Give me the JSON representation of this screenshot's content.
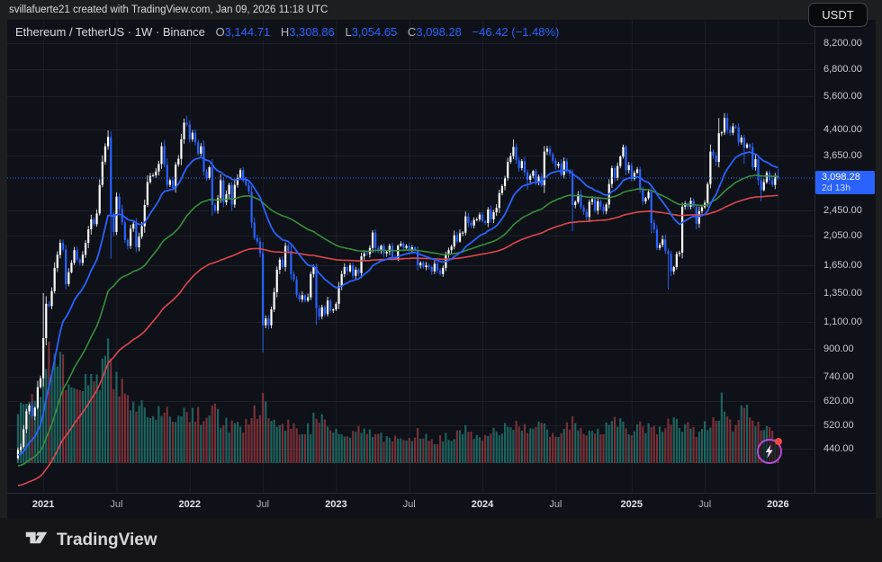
{
  "attribution": {
    "text": "svillafuerte21 created with TradingView.com, Jan 09, 2026 11:18 UTC"
  },
  "header": {
    "symbol": "Ethereum / TetherUS",
    "separator": "·",
    "interval": "1W",
    "exchange": "Binance",
    "ohlc": [
      {
        "label": "O",
        "value": "3,144.71"
      },
      {
        "label": "H",
        "value": "3,308.86"
      },
      {
        "label": "L",
        "value": "3,054.65"
      },
      {
        "label": "C",
        "value": "3,098.28"
      }
    ],
    "change": "−46.42 (−1.48%)"
  },
  "currency_button": {
    "label": "USDT"
  },
  "price_label": {
    "price": "3,098.28",
    "countdown": "2d 13h"
  },
  "footer": {
    "brand": "TradingView"
  },
  "colors": {
    "accent_blue": "#2962ff",
    "candle_up": "#ffffff",
    "candle_up_wick": "#e3e5e8",
    "candle_down": "#2962ff",
    "ma_fast": "#2962ff",
    "ma_mid": "#388e3c",
    "ma_slow": "#e0454e",
    "vol_up": "rgba(42,166,152,0.55)",
    "vol_down": "rgba(226,77,87,0.50)",
    "grid": "rgba(255,255,255,0.055)"
  },
  "chart_data": {
    "type": "candlestick-with-volume",
    "title": "Ethereum / TetherUS · 1W · Binance",
    "scale": "logarithmic",
    "start_week": "2020-11-02",
    "weeks": 271,
    "current_price": 3098.28,
    "last_candle": {
      "open": 3144.71,
      "high": 3308.86,
      "low": 3054.65,
      "close": 3098.28
    },
    "y_axis": {
      "ticks": [
        {
          "value": 8200,
          "label": "8,200.00"
        },
        {
          "value": 6800,
          "label": "6,800.00"
        },
        {
          "value": 5600,
          "label": "5,600.00"
        },
        {
          "value": 4400,
          "label": "4,400.00"
        },
        {
          "value": 3650,
          "label": "3,650.00"
        },
        {
          "value": 2450,
          "label": "2,450.00"
        },
        {
          "value": 2050,
          "label": "2,050.00"
        },
        {
          "value": 1650,
          "label": "1,650.00"
        },
        {
          "value": 1350,
          "label": "1,350.00"
        },
        {
          "value": 1100,
          "label": "1,100.00"
        },
        {
          "value": 900,
          "label": "900.00"
        },
        {
          "value": 740,
          "label": "740.00"
        },
        {
          "value": 620,
          "label": "620.00"
        },
        {
          "value": 520,
          "label": "520.00"
        },
        {
          "value": 440,
          "label": "440.00"
        }
      ]
    },
    "x_axis": {
      "ticks": [
        {
          "week": 9,
          "label": "2021",
          "major": true
        },
        {
          "week": 35,
          "label": "Jul",
          "major": false
        },
        {
          "week": 61,
          "label": "2022",
          "major": true
        },
        {
          "week": 87,
          "label": "Jul",
          "major": false
        },
        {
          "week": 113,
          "label": "2023",
          "major": true
        },
        {
          "week": 139,
          "label": "Jul",
          "major": false
        },
        {
          "week": 165,
          "label": "2024",
          "major": true
        },
        {
          "week": 191,
          "label": "Jul",
          "major": false
        },
        {
          "week": 218,
          "label": "2025",
          "major": true
        },
        {
          "week": 244,
          "label": "Jul",
          "major": false
        },
        {
          "week": 270,
          "label": "2026",
          "major": true
        }
      ]
    },
    "moving_averages": [
      {
        "name": "fast-blue",
        "span": 20,
        "color_key": "ma_fast"
      },
      {
        "name": "mid-green",
        "span": 64,
        "color_key": "ma_mid"
      },
      {
        "name": "slow-red",
        "span": 160,
        "color_key": "ma_slow"
      }
    ],
    "weekly_closes": [
      [
        0,
        435
      ],
      [
        1,
        445
      ],
      [
        2,
        505
      ],
      [
        3,
        575
      ],
      [
        4,
        600
      ],
      [
        5,
        555
      ],
      [
        6,
        590
      ],
      [
        7,
        685
      ],
      [
        8,
        730
      ],
      [
        9,
        975
      ],
      [
        10,
        1250
      ],
      [
        11,
        1230
      ],
      [
        12,
        1370
      ],
      [
        13,
        1620
      ],
      [
        14,
        1780
      ],
      [
        15,
        1940
      ],
      [
        16,
        1850
      ],
      [
        17,
        1440
      ],
      [
        18,
        1570
      ],
      [
        19,
        1680
      ],
      [
        20,
        1840
      ],
      [
        21,
        1720
      ],
      [
        22,
        1680
      ],
      [
        23,
        1780
      ],
      [
        24,
        1940
      ],
      [
        25,
        2140
      ],
      [
        26,
        2300
      ],
      [
        27,
        2220
      ],
      [
        28,
        2400
      ],
      [
        29,
        2950
      ],
      [
        30,
        3490
      ],
      [
        31,
        3900
      ],
      [
        32,
        4170
      ],
      [
        33,
        2390
      ],
      [
        34,
        2100
      ],
      [
        35,
        2710
      ],
      [
        36,
        2480
      ],
      [
        37,
        2250
      ],
      [
        38,
        1980
      ],
      [
        39,
        1900
      ],
      [
        40,
        2150
      ],
      [
        41,
        2230
      ],
      [
        42,
        1880
      ],
      [
        43,
        2030
      ],
      [
        44,
        2190
      ],
      [
        45,
        2550
      ],
      [
        46,
        3010
      ],
      [
        47,
        3150
      ],
      [
        48,
        3160
      ],
      [
        49,
        3250
      ],
      [
        50,
        3430
      ],
      [
        51,
        3900
      ],
      [
        52,
        3420
      ],
      [
        53,
        2950
      ],
      [
        54,
        3050
      ],
      [
        55,
        2890
      ],
      [
        56,
        3420
      ],
      [
        57,
        3560
      ],
      [
        58,
        4100
      ],
      [
        59,
        4620
      ],
      [
        60,
        4560
      ],
      [
        61,
        4100
      ],
      [
        62,
        4300
      ],
      [
        63,
        4010
      ],
      [
        64,
        3700
      ],
      [
        65,
        3900
      ],
      [
        66,
        3250
      ],
      [
        67,
        3100
      ],
      [
        68,
        3350
      ],
      [
        69,
        2550
      ],
      [
        70,
        2450
      ],
      [
        71,
        2680
      ],
      [
        72,
        3050
      ],
      [
        73,
        2600
      ],
      [
        74,
        2760
      ],
      [
        75,
        2950
      ],
      [
        76,
        2560
      ],
      [
        77,
        2950
      ],
      [
        78,
        3110
      ],
      [
        79,
        3280
      ],
      [
        80,
        3050
      ],
      [
        81,
        2950
      ],
      [
        82,
        2810
      ],
      [
        83,
        2250
      ],
      [
        84,
        2010
      ],
      [
        85,
        1960
      ],
      [
        86,
        1800
      ],
      [
        87,
        1070
      ],
      [
        88,
        1125
      ],
      [
        89,
        1070
      ],
      [
        90,
        1200
      ],
      [
        91,
        1360
      ],
      [
        92,
        1600
      ],
      [
        93,
        1720
      ],
      [
        94,
        1630
      ],
      [
        95,
        1900
      ],
      [
        96,
        1830
      ],
      [
        97,
        1550
      ],
      [
        98,
        1490
      ],
      [
        99,
        1330
      ],
      [
        100,
        1290
      ],
      [
        101,
        1330
      ],
      [
        102,
        1280
      ],
      [
        103,
        1310
      ],
      [
        104,
        1550
      ],
      [
        105,
        1630
      ],
      [
        106,
        1210
      ],
      [
        107,
        1140
      ],
      [
        108,
        1220
      ],
      [
        109,
        1160
      ],
      [
        110,
        1280
      ],
      [
        111,
        1190
      ],
      [
        112,
        1200
      ],
      [
        113,
        1250
      ],
      [
        114,
        1420
      ],
      [
        115,
        1550
      ],
      [
        116,
        1630
      ],
      [
        117,
        1580
      ],
      [
        118,
        1650
      ],
      [
        119,
        1530
      ],
      [
        120,
        1600
      ],
      [
        121,
        1560
      ],
      [
        122,
        1760
      ],
      [
        123,
        1800
      ],
      [
        124,
        1790
      ],
      [
        125,
        1870
      ],
      [
        126,
        2090
      ],
      [
        127,
        1870
      ],
      [
        128,
        1840
      ],
      [
        129,
        1900
      ],
      [
        130,
        1800
      ],
      [
        131,
        1820
      ],
      [
        132,
        1900
      ],
      [
        133,
        1750
      ],
      [
        134,
        1730
      ],
      [
        135,
        1900
      ],
      [
        136,
        1930
      ],
      [
        137,
        1870
      ],
      [
        138,
        1900
      ],
      [
        139,
        1850
      ],
      [
        140,
        1880
      ],
      [
        141,
        1840
      ],
      [
        142,
        1650
      ],
      [
        143,
        1680
      ],
      [
        144,
        1630
      ],
      [
        145,
        1650
      ],
      [
        146,
        1630
      ],
      [
        147,
        1580
      ],
      [
        148,
        1670
      ],
      [
        149,
        1590
      ],
      [
        150,
        1550
      ],
      [
        151,
        1620
      ],
      [
        152,
        1790
      ],
      [
        153,
        1840
      ],
      [
        154,
        1890
      ],
      [
        155,
        2050
      ],
      [
        156,
        1960
      ],
      [
        157,
        2080
      ],
      [
        158,
        2090
      ],
      [
        159,
        2350
      ],
      [
        160,
        2240
      ],
      [
        161,
        2200
      ],
      [
        162,
        2290
      ],
      [
        163,
        2300
      ],
      [
        164,
        2380
      ],
      [
        165,
        2270
      ],
      [
        166,
        2240
      ],
      [
        167,
        2470
      ],
      [
        168,
        2300
      ],
      [
        169,
        2420
      ],
      [
        170,
        2500
      ],
      [
        171,
        2780
      ],
      [
        172,
        2920
      ],
      [
        173,
        3100
      ],
      [
        174,
        3480
      ],
      [
        175,
        3630
      ],
      [
        176,
        3880
      ],
      [
        177,
        3520
      ],
      [
        178,
        3330
      ],
      [
        179,
        3500
      ],
      [
        180,
        3230
      ],
      [
        181,
        3060
      ],
      [
        182,
        3150
      ],
      [
        183,
        3260
      ],
      [
        184,
        3020
      ],
      [
        185,
        3130
      ],
      [
        186,
        2940
      ],
      [
        187,
        3750
      ],
      [
        188,
        3830
      ],
      [
        189,
        3680
      ],
      [
        190,
        3510
      ],
      [
        191,
        3380
      ],
      [
        192,
        3440
      ],
      [
        193,
        3170
      ],
      [
        194,
        3500
      ],
      [
        195,
        3270
      ],
      [
        196,
        3210
      ],
      [
        197,
        2550
      ],
      [
        198,
        2610
      ],
      [
        199,
        2750
      ],
      [
        200,
        2510
      ],
      [
        201,
        2430
      ],
      [
        202,
        2340
      ],
      [
        203,
        2610
      ],
      [
        204,
        2660
      ],
      [
        205,
        2450
      ],
      [
        206,
        2620
      ],
      [
        207,
        2520
      ],
      [
        208,
        2440
      ],
      [
        209,
        2560
      ],
      [
        210,
        2970
      ],
      [
        211,
        3330
      ],
      [
        212,
        3100
      ],
      [
        213,
        3380
      ],
      [
        214,
        3620
      ],
      [
        215,
        3880
      ],
      [
        216,
        3280
      ],
      [
        217,
        3400
      ],
      [
        218,
        3080
      ],
      [
        219,
        3220
      ],
      [
        220,
        3300
      ],
      [
        221,
        2870
      ],
      [
        222,
        2620
      ],
      [
        223,
        2680
      ],
      [
        224,
        2800
      ],
      [
        225,
        2240
      ],
      [
        226,
        2140
      ],
      [
        227,
        1870
      ],
      [
        228,
        1910
      ],
      [
        229,
        1990
      ],
      [
        230,
        1830
      ],
      [
        231,
        1790
      ],
      [
        232,
        1580
      ],
      [
        233,
        1630
      ],
      [
        234,
        1790
      ],
      [
        235,
        1810
      ],
      [
        236,
        2520
      ],
      [
        237,
        2580
      ],
      [
        238,
        2520
      ],
      [
        239,
        2630
      ],
      [
        240,
        2520
      ],
      [
        241,
        2230
      ],
      [
        242,
        2440
      ],
      [
        243,
        2510
      ],
      [
        244,
        2590
      ],
      [
        245,
        2970
      ],
      [
        246,
        3750
      ],
      [
        247,
        3650
      ],
      [
        248,
        3480
      ],
      [
        249,
        4280
      ],
      [
        250,
        4310
      ],
      [
        251,
        4780
      ],
      [
        252,
        4390
      ],
      [
        253,
        4300
      ],
      [
        254,
        4500
      ],
      [
        255,
        4470
      ],
      [
        256,
        4010
      ],
      [
        257,
        4150
      ],
      [
        258,
        3860
      ],
      [
        259,
        3950
      ],
      [
        260,
        3880
      ],
      [
        261,
        3350
      ],
      [
        262,
        3550
      ],
      [
        263,
        3050
      ],
      [
        264,
        2840
      ],
      [
        265,
        3010
      ],
      [
        266,
        3220
      ],
      [
        267,
        3050
      ],
      [
        268,
        2950
      ],
      [
        269,
        3144.71
      ],
      [
        270,
        3098.28
      ]
    ],
    "wick_overrides": {
      "9": [
        1350,
        null
      ],
      "32": [
        4372,
        null
      ],
      "33": [
        null,
        1730
      ],
      "60": [
        4868,
        null
      ],
      "87": [
        null,
        881
      ],
      "106": [
        null,
        1074
      ],
      "176": [
        4093,
        null
      ],
      "181": [
        null,
        2850
      ],
      "197": [
        null,
        2110
      ],
      "225": [
        null,
        2080
      ],
      "231": [
        null,
        1385
      ],
      "249": [
        4780,
        null
      ],
      "251": [
        4955,
        null
      ],
      "258": [
        null,
        3435
      ],
      "264": [
        null,
        2620
      ],
      "270": [
        3308.86,
        3054.65
      ]
    },
    "volume_envelope": [
      [
        0,
        0.5
      ],
      [
        4,
        0.62
      ],
      [
        8,
        0.75
      ],
      [
        10,
        0.95
      ],
      [
        14,
        1.0
      ],
      [
        17,
        0.85
      ],
      [
        20,
        0.7
      ],
      [
        25,
        0.72
      ],
      [
        29,
        0.8
      ],
      [
        32,
        1.0
      ],
      [
        33,
        0.95
      ],
      [
        36,
        0.7
      ],
      [
        40,
        0.58
      ],
      [
        44,
        0.52
      ],
      [
        48,
        0.5
      ],
      [
        52,
        0.48
      ],
      [
        56,
        0.42
      ],
      [
        59,
        0.5
      ],
      [
        64,
        0.45
      ],
      [
        68,
        0.42
      ],
      [
        69,
        0.52
      ],
      [
        72,
        0.38
      ],
      [
        76,
        0.35
      ],
      [
        80,
        0.33
      ],
      [
        83,
        0.5
      ],
      [
        85,
        0.42
      ],
      [
        87,
        0.62
      ],
      [
        90,
        0.45
      ],
      [
        95,
        0.38
      ],
      [
        99,
        0.32
      ],
      [
        104,
        0.34
      ],
      [
        106,
        0.52
      ],
      [
        110,
        0.32
      ],
      [
        113,
        0.3
      ],
      [
        118,
        0.28
      ],
      [
        122,
        0.3
      ],
      [
        126,
        0.3
      ],
      [
        130,
        0.24
      ],
      [
        135,
        0.24
      ],
      [
        140,
        0.22
      ],
      [
        142,
        0.3
      ],
      [
        147,
        0.2
      ],
      [
        152,
        0.24
      ],
      [
        155,
        0.26
      ],
      [
        159,
        0.3
      ],
      [
        165,
        0.26
      ],
      [
        171,
        0.32
      ],
      [
        176,
        0.38
      ],
      [
        181,
        0.32
      ],
      [
        187,
        0.34
      ],
      [
        191,
        0.26
      ],
      [
        197,
        0.4
      ],
      [
        201,
        0.3
      ],
      [
        205,
        0.26
      ],
      [
        210,
        0.38
      ],
      [
        215,
        0.36
      ],
      [
        218,
        0.3
      ],
      [
        222,
        0.34
      ],
      [
        225,
        0.36
      ],
      [
        227,
        0.32
      ],
      [
        231,
        0.4
      ],
      [
        236,
        0.34
      ],
      [
        241,
        0.3
      ],
      [
        245,
        0.36
      ],
      [
        249,
        0.42
      ],
      [
        250,
        0.72
      ],
      [
        251,
        0.44
      ],
      [
        254,
        0.36
      ],
      [
        258,
        0.55
      ],
      [
        260,
        0.4
      ],
      [
        261,
        0.48
      ],
      [
        263,
        0.38
      ],
      [
        265,
        0.34
      ],
      [
        267,
        0.3
      ],
      [
        269,
        0.28
      ],
      [
        270,
        0.22
      ]
    ]
  }
}
